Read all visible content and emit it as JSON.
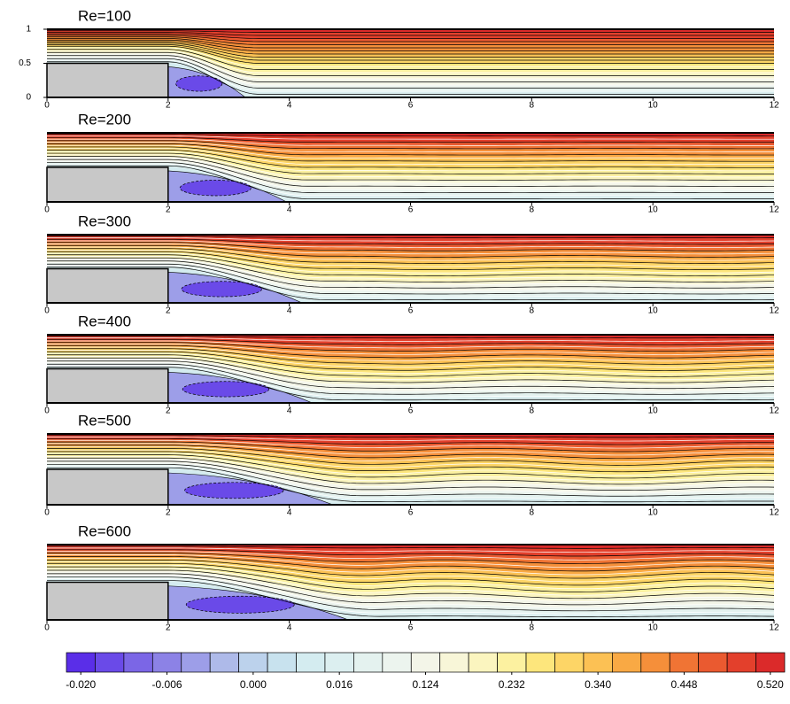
{
  "chart_data": [
    {
      "type": "contour",
      "title": "Re=100",
      "xlim": [
        0,
        12
      ],
      "xticks": [
        0,
        2,
        4,
        6,
        8,
        10,
        12
      ],
      "ylim": [
        0,
        1
      ],
      "yticks": [
        0,
        0.5,
        1
      ]
    },
    {
      "type": "contour",
      "title": "Re=200",
      "xlim": [
        0,
        12
      ],
      "xticks": [
        0,
        2,
        4,
        6,
        8,
        10,
        12
      ],
      "ylim": [
        0,
        1
      ]
    },
    {
      "type": "contour",
      "title": "Re=300",
      "xlim": [
        0,
        12
      ],
      "xticks": [
        0,
        2,
        4,
        6,
        8,
        10,
        12
      ],
      "ylim": [
        0,
        1
      ]
    },
    {
      "type": "contour",
      "title": "Re=400",
      "xlim": [
        0,
        12
      ],
      "xticks": [
        0,
        2,
        4,
        6,
        8,
        10,
        12
      ],
      "ylim": [
        0,
        1
      ]
    },
    {
      "type": "contour",
      "title": "Re=500",
      "xlim": [
        0,
        12
      ],
      "xticks": [
        0,
        2,
        4,
        6,
        8,
        10,
        12
      ],
      "ylim": [
        0,
        1
      ]
    },
    {
      "type": "contour",
      "title": "Re=600",
      "xlim": [
        0,
        12
      ],
      "xticks": [
        0,
        2,
        4,
        6,
        8,
        10,
        12
      ],
      "ylim": [
        0,
        1
      ]
    },
    {
      "type": "colorbar",
      "colors": [
        "#5a2ee8",
        "#6a4ae8",
        "#7b66e6",
        "#8c82e6",
        "#9d9ee8",
        "#aebae9",
        "#bcd2ec",
        "#c8e2ee",
        "#d4ecf0",
        "#dceff0",
        "#e4f2ef",
        "#ecf4ee",
        "#f3f5e8",
        "#f8f6d8",
        "#fbf5bf",
        "#fcf1a0",
        "#fde67c",
        "#fdd566",
        "#fcc154",
        "#f9a944",
        "#f58f3a",
        "#f07434",
        "#ea5a30",
        "#e3402c",
        "#db2a2a"
      ],
      "ticks": [
        {
          "value": -0.02,
          "label": "-0.020"
        },
        {
          "value": -0.006,
          "label": "-0.006"
        },
        {
          "value": 0,
          "label": "0.000"
        },
        {
          "value": 0.016,
          "label": "0.016"
        },
        {
          "value": 0.124,
          "label": "0.124"
        },
        {
          "value": 0.232,
          "label": "0.232"
        },
        {
          "value": 0.34,
          "label": "0.340"
        },
        {
          "value": 0.448,
          "label": "0.448"
        },
        {
          "value": 0.52,
          "label": "0.520"
        }
      ]
    }
  ]
}
